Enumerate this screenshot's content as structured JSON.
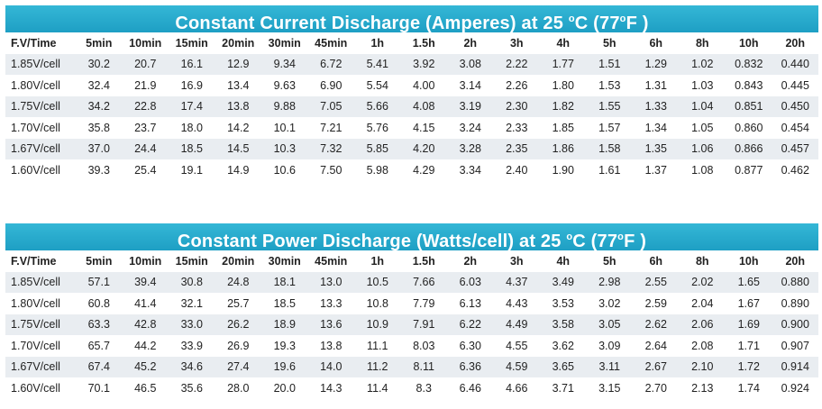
{
  "current": {
    "title_pre": "Constant Current Discharge (Amperes) at 25 ",
    "deg1": "o",
    "title_mid": "C (77",
    "deg2": "o",
    "title_post": "F )",
    "headers": [
      "F.V/Time",
      "5min",
      "10min",
      "15min",
      "20min",
      "30min",
      "45min",
      "1h",
      "1.5h",
      "2h",
      "3h",
      "4h",
      "5h",
      "6h",
      "8h",
      "10h",
      "20h"
    ],
    "rows": [
      [
        "1.85V/cell",
        "30.2",
        "20.7",
        "16.1",
        "12.9",
        "9.34",
        "6.72",
        "5.41",
        "3.92",
        "3.08",
        "2.22",
        "1.77",
        "1.51",
        "1.29",
        "1.02",
        "0.832",
        "0.440"
      ],
      [
        "1.80V/cell",
        "32.4",
        "21.9",
        "16.9",
        "13.4",
        "9.63",
        "6.90",
        "5.54",
        "4.00",
        "3.14",
        "2.26",
        "1.80",
        "1.53",
        "1.31",
        "1.03",
        "0.843",
        "0.445"
      ],
      [
        "1.75V/cell",
        "34.2",
        "22.8",
        "17.4",
        "13.8",
        "9.88",
        "7.05",
        "5.66",
        "4.08",
        "3.19",
        "2.30",
        "1.82",
        "1.55",
        "1.33",
        "1.04",
        "0.851",
        "0.450"
      ],
      [
        "1.70V/cell",
        "35.8",
        "23.7",
        "18.0",
        "14.2",
        "10.1",
        "7.21",
        "5.76",
        "4.15",
        "3.24",
        "2.33",
        "1.85",
        "1.57",
        "1.34",
        "1.05",
        "0.860",
        "0.454"
      ],
      [
        "1.67V/cell",
        "37.0",
        "24.4",
        "18.5",
        "14.5",
        "10.3",
        "7.32",
        "5.85",
        "4.20",
        "3.28",
        "2.35",
        "1.86",
        "1.58",
        "1.35",
        "1.06",
        "0.866",
        "0.457"
      ],
      [
        "1.60V/cell",
        "39.3",
        "25.4",
        "19.1",
        "14.9",
        "10.6",
        "7.50",
        "5.98",
        "4.29",
        "3.34",
        "2.40",
        "1.90",
        "1.61",
        "1.37",
        "1.08",
        "0.877",
        "0.462"
      ]
    ]
  },
  "power": {
    "title_pre": "Constant Power Discharge (Watts/cell) at 25 ",
    "deg1": "o",
    "title_mid": "C (77",
    "deg2": "o",
    "title_post": "F )",
    "headers": [
      "F.V/Time",
      "5min",
      "10min",
      "15min",
      "20min",
      "30min",
      "45min",
      "1h",
      "1.5h",
      "2h",
      "3h",
      "4h",
      "5h",
      "6h",
      "8h",
      "10h",
      "20h"
    ],
    "rows": [
      [
        "1.85V/cell",
        "57.1",
        "39.4",
        "30.8",
        "24.8",
        "18.1",
        "13.0",
        "10.5",
        "7.66",
        "6.03",
        "4.37",
        "3.49",
        "2.98",
        "2.55",
        "2.02",
        "1.65",
        "0.880"
      ],
      [
        "1.80V/cell",
        "60.8",
        "41.4",
        "32.1",
        "25.7",
        "18.5",
        "13.3",
        "10.8",
        "7.79",
        "6.13",
        "4.43",
        "3.53",
        "3.02",
        "2.59",
        "2.04",
        "1.67",
        "0.890"
      ],
      [
        "1.75V/cell",
        "63.3",
        "42.8",
        "33.0",
        "26.2",
        "18.9",
        "13.6",
        "10.9",
        "7.91",
        "6.22",
        "4.49",
        "3.58",
        "3.05",
        "2.62",
        "2.06",
        "1.69",
        "0.900"
      ],
      [
        "1.70V/cell",
        "65.7",
        "44.2",
        "33.9",
        "26.9",
        "19.3",
        "13.8",
        "11.1",
        "8.03",
        "6.30",
        "4.55",
        "3.62",
        "3.09",
        "2.64",
        "2.08",
        "1.71",
        "0.907"
      ],
      [
        "1.67V/cell",
        "67.4",
        "45.2",
        "34.6",
        "27.4",
        "19.6",
        "14.0",
        "11.2",
        "8.11",
        "6.36",
        "4.59",
        "3.65",
        "3.11",
        "2.67",
        "2.10",
        "1.72",
        "0.914"
      ],
      [
        "1.60V/cell",
        "70.1",
        "46.5",
        "35.6",
        "28.0",
        "20.0",
        "14.3",
        "11.4",
        "8.3",
        "6.46",
        "4.66",
        "3.71",
        "3.15",
        "2.70",
        "2.13",
        "1.74",
        "0.924"
      ]
    ]
  }
}
